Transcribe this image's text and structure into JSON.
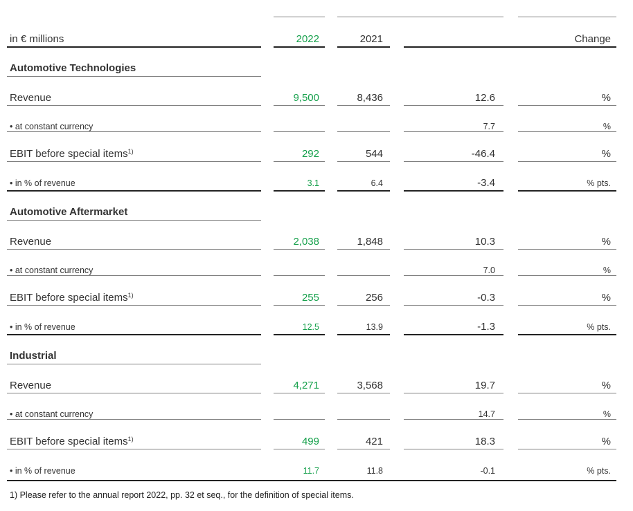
{
  "header": {
    "unit_label": "in € millions",
    "year_current": "2022",
    "year_prior": "2021",
    "change_label": "Change"
  },
  "segments": [
    {
      "name": "Automotive Technologies",
      "rows": [
        {
          "label": "Revenue",
          "sup": "",
          "v2022": "9,500",
          "v2021": "8,436",
          "change": "12.6",
          "unit": "%",
          "small": false
        },
        {
          "label": "• at constant currency",
          "sup": "",
          "v2022": "",
          "v2021": "",
          "change": "7.7",
          "unit": "%",
          "small": true
        },
        {
          "label": "EBIT before special items",
          "sup": "1)",
          "v2022": "292",
          "v2021": "544",
          "change": "-46.4",
          "unit": "%",
          "small": false
        },
        {
          "label": "• in % of revenue",
          "sup": "",
          "v2022": "3.1",
          "v2021": "6.4",
          "change": "-3.4",
          "unit": "% pts.",
          "small": true
        }
      ]
    },
    {
      "name": "Automotive Aftermarket",
      "rows": [
        {
          "label": "Revenue",
          "sup": "",
          "v2022": "2,038",
          "v2021": "1,848",
          "change": "10.3",
          "unit": "%",
          "small": false
        },
        {
          "label": "• at constant currency",
          "sup": "",
          "v2022": "",
          "v2021": "",
          "change": "7.0",
          "unit": "%",
          "small": true
        },
        {
          "label": "EBIT before special items",
          "sup": "1)",
          "v2022": "255",
          "v2021": "256",
          "change": "-0.3",
          "unit": "%",
          "small": false
        },
        {
          "label": "• in % of revenue",
          "sup": "",
          "v2022": "12.5",
          "v2021": "13.9",
          "change": "-1.3",
          "unit": "% pts.",
          "small": true
        }
      ]
    },
    {
      "name": "Industrial",
      "rows": [
        {
          "label": "Revenue",
          "sup": "",
          "v2022": "4,271",
          "v2021": "3,568",
          "change": "19.7",
          "unit": "%",
          "small": false
        },
        {
          "label": "• at constant currency",
          "sup": "",
          "v2022": "",
          "v2021": "",
          "change": "14.7",
          "unit": "%",
          "small": true
        },
        {
          "label": "EBIT before special items",
          "sup": "1)",
          "v2022": "499",
          "v2021": "421",
          "change": "18.3",
          "unit": "%",
          "small": false
        },
        {
          "label": "• in % of revenue",
          "sup": "",
          "v2022": "11.7",
          "v2021": "11.8",
          "change": "-0.1",
          "unit": "% pts.",
          "small": true
        }
      ]
    }
  ],
  "footnote": "1) Please refer to the annual report 2022, pp. 32 et seq., for the definition of special items.",
  "colors": {
    "accent_green": "#15a04b",
    "text": "#333333",
    "rule": "#7f7f7f"
  }
}
